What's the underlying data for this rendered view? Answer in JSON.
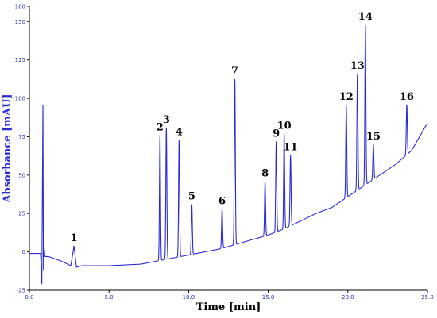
{
  "chart_data": {
    "type": "line",
    "title": "",
    "xlabel": "Time [min]",
    "ylabel": "Absorbance [mAU]",
    "xlim": [
      0.0,
      25.0
    ],
    "ylim": [
      -25,
      160
    ],
    "x_ticks": [
      "0.0",
      "5.0",
      "10.0",
      "15.0",
      "20.0",
      "25.0"
    ],
    "y_ticks": [
      "-25",
      "0",
      "25",
      "50",
      "75",
      "100",
      "125",
      "150",
      "160"
    ],
    "grid": false,
    "series": [
      {
        "color": "#2b2bd6",
        "x": [
          0.0,
          0.7,
          0.78,
          0.85,
          0.88,
          0.92,
          0.98,
          1.2,
          2.0,
          2.6,
          2.8,
          2.95,
          3.3,
          5.0,
          6.0,
          7.0,
          8.0,
          9.0,
          10.0,
          11.0,
          12.0,
          13.0,
          14.0,
          15.0,
          16.0,
          17.0,
          18.0,
          19.0,
          20.0,
          21.0,
          22.0,
          23.0,
          24.0,
          25.0
        ],
        "y": [
          -1,
          -1,
          -21,
          96,
          -12,
          3,
          -3,
          -3,
          -6,
          -9,
          4,
          -10,
          -9,
          -9,
          -8.5,
          -8,
          -6,
          -4,
          -2,
          0,
          2,
          5,
          8,
          11,
          15,
          20,
          25,
          29,
          36,
          43,
          50,
          57,
          66,
          84
        ]
      }
    ],
    "peaks": [
      {
        "label": "1",
        "x": 2.8,
        "y": 4
      },
      {
        "label": "2",
        "x": 8.2,
        "y": 76
      },
      {
        "label": "3",
        "x": 8.6,
        "y": 81
      },
      {
        "label": "4",
        "x": 9.4,
        "y": 73
      },
      {
        "label": "5",
        "x": 10.2,
        "y": 31
      },
      {
        "label": "6",
        "x": 12.1,
        "y": 28
      },
      {
        "label": "7",
        "x": 12.9,
        "y": 113
      },
      {
        "label": "8",
        "x": 14.8,
        "y": 46
      },
      {
        "label": "9",
        "x": 15.5,
        "y": 72
      },
      {
        "label": "10",
        "x": 16.0,
        "y": 77
      },
      {
        "label": "11",
        "x": 16.4,
        "y": 63
      },
      {
        "label": "12",
        "x": 19.9,
        "y": 96
      },
      {
        "label": "13",
        "x": 20.6,
        "y": 116
      },
      {
        "label": "14",
        "x": 21.1,
        "y": 148
      },
      {
        "label": "15",
        "x": 21.6,
        "y": 70
      },
      {
        "label": "16",
        "x": 23.7,
        "y": 96
      }
    ]
  }
}
